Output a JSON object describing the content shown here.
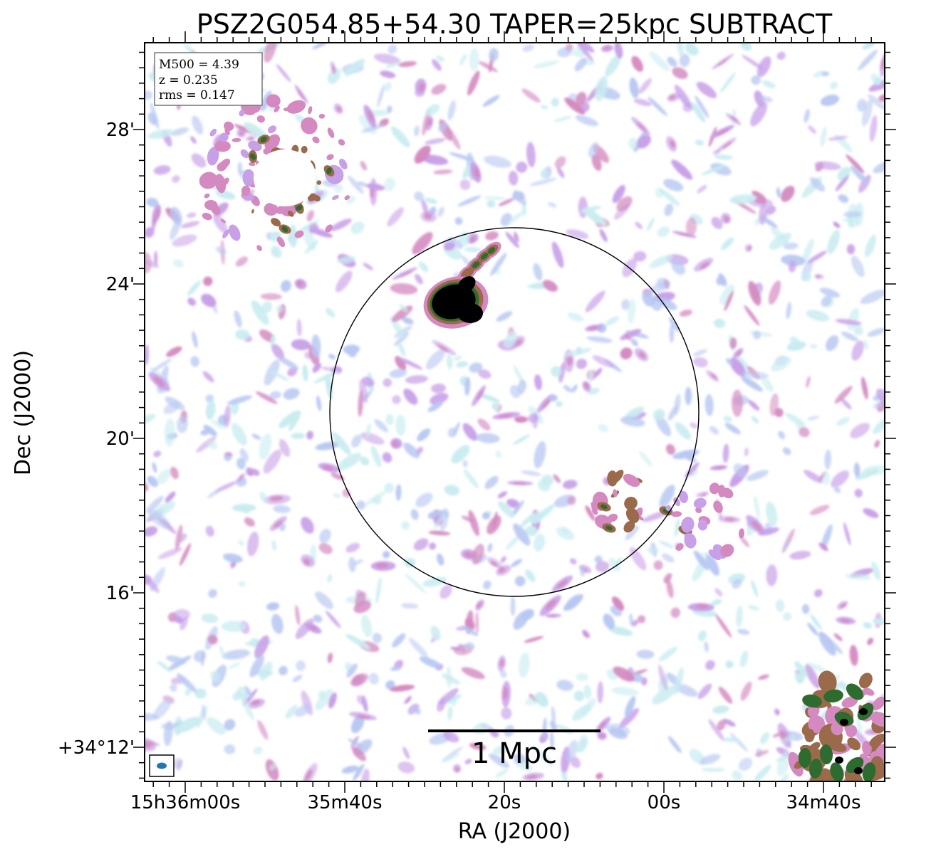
{
  "chart_data": {
    "type": "heatmap",
    "title": "PSZ2G054.85+54.30 TAPER=25kpc SUBTRACT",
    "xlabel": "RA (J2000)",
    "ylabel": "Dec (J2000)",
    "x_ticks": [
      "15h36m00s",
      "35m40s",
      "20s",
      "00s",
      "34m40s"
    ],
    "y_ticks": [
      "+34°12'",
      "16'",
      "20'",
      "24'",
      "28'"
    ],
    "info_box": [
      "M500 = 4.39",
      "z = 0.235",
      "rms = 0.147"
    ],
    "scalebar_label": "1 Mpc",
    "colormap": "cubehelix_r",
    "colors": {
      "faint_low": "#c9ecf0",
      "faint_mid": "#b8c8f2",
      "faint_high": "#c8a0e8",
      "medium": "#d48ac0",
      "bright": "#9a6a4a",
      "very_bright": "#2e6b2e",
      "peak": "#000000"
    },
    "sources": [
      {
        "name": "bright-radio-galaxy",
        "description_level": "peak"
      },
      {
        "name": "upper-left-source",
        "description_level": "bright"
      },
      {
        "name": "lower-right-source",
        "description_level": "very_bright"
      },
      {
        "name": "right-middle-source",
        "description_level": "bright"
      }
    ],
    "overlay": {
      "circle": "cluster aperture",
      "beam": "ellipse",
      "beam_color": "#1f77b4"
    }
  }
}
